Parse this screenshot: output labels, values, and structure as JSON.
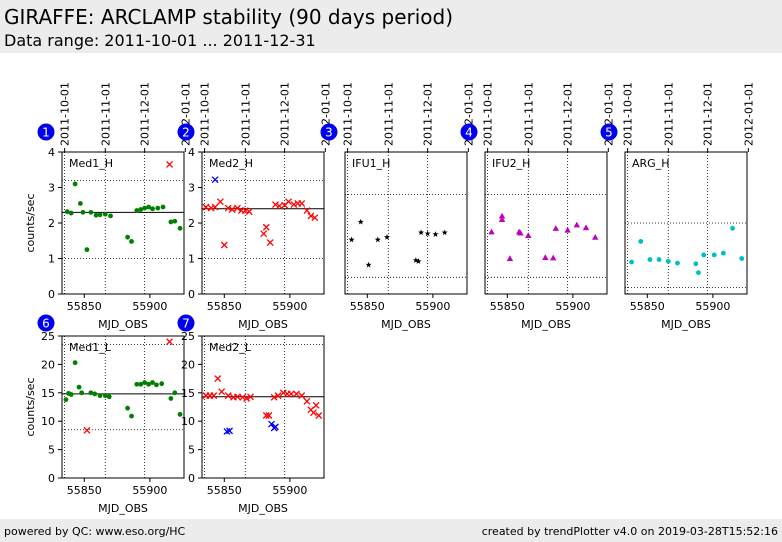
{
  "header": {
    "title": "GIRAFFE: ARCLAMP stability (90 days period)",
    "subtitle": "Data range: 2011-10-01 ... 2011-12-31"
  },
  "footer": {
    "left": "powered by QC: www.eso.org/HC",
    "right": "created by trendPlotter v4.0 on 2019-03-28T15:52:16"
  },
  "colors": {
    "green": "#008000",
    "red": "#ff0000",
    "blue": "#0000ff",
    "black": "#000000",
    "magenta": "#bf00bf",
    "cyan": "#00bfbf",
    "badge": "#0000ee"
  },
  "date_ticks": [
    {
      "label": "2011-10-01",
      "mjd": 55835
    },
    {
      "label": "2011-11-01",
      "mjd": 55866
    },
    {
      "label": "2011-12-01",
      "mjd": 55896
    },
    {
      "label": "2012-01-01",
      "mjd": 55927
    }
  ],
  "chart_data": [
    {
      "panel": 1,
      "type": "scatter",
      "label": "Med1_H",
      "xlabel": "MJD_OBS",
      "ylabel": "counts/sec",
      "xlim": [
        55833,
        55926
      ],
      "ylim": [
        0,
        4
      ],
      "yticks": [
        0,
        1,
        2,
        3,
        4
      ],
      "xticks": [
        55850,
        55900
      ],
      "reference_line": 2.3,
      "upper_dotted": 3.2,
      "lower_dotted": 1.0,
      "series": [
        {
          "color": "green",
          "marker": "dot",
          "points": [
            [
              55837,
              2.32
            ],
            [
              55840,
              2.28
            ],
            [
              55843,
              3.1
            ],
            [
              55847,
              2.55
            ],
            [
              55849,
              2.3
            ],
            [
              55852,
              1.25
            ],
            [
              55855,
              2.3
            ],
            [
              55859,
              2.22
            ],
            [
              55862,
              2.23
            ],
            [
              55866,
              2.25
            ],
            [
              55870,
              2.2
            ],
            [
              55883,
              1.6
            ],
            [
              55886,
              1.48
            ],
            [
              55890,
              2.35
            ],
            [
              55893,
              2.38
            ],
            [
              55896,
              2.42
            ],
            [
              55899,
              2.45
            ],
            [
              55902,
              2.4
            ],
            [
              55906,
              2.42
            ],
            [
              55910,
              2.45
            ],
            [
              55916,
              2.03
            ],
            [
              55919,
              2.05
            ],
            [
              55923,
              1.85
            ]
          ]
        },
        {
          "color": "red",
          "marker": "x",
          "points": [
            [
              55915,
              3.65
            ]
          ]
        },
        {
          "color": "blue",
          "marker": "x",
          "points": []
        }
      ]
    },
    {
      "panel": 2,
      "type": "scatter",
      "label": "Med2_H",
      "xlabel": "MJD_OBS",
      "ylabel": "",
      "xlim": [
        55833,
        55926
      ],
      "ylim": [
        0,
        4
      ],
      "yticks": [
        0,
        1,
        2,
        3,
        4
      ],
      "xticks": [
        55850,
        55900
      ],
      "reference_line": 2.4,
      "upper_dotted": 3.2,
      "lower_dotted": 1.0,
      "series": [
        {
          "color": "red",
          "marker": "x",
          "points": [
            [
              55836,
              2.45
            ],
            [
              55840,
              2.42
            ],
            [
              55843,
              2.45
            ],
            [
              55847,
              2.6
            ],
            [
              55850,
              1.38
            ],
            [
              55853,
              2.42
            ],
            [
              55856,
              2.38
            ],
            [
              55860,
              2.42
            ],
            [
              55863,
              2.35
            ],
            [
              55866,
              2.35
            ],
            [
              55869,
              2.32
            ],
            [
              55880,
              1.7
            ],
            [
              55882,
              1.88
            ],
            [
              55885,
              1.45
            ],
            [
              55889,
              2.52
            ],
            [
              55892,
              2.48
            ],
            [
              55896,
              2.5
            ],
            [
              55899,
              2.6
            ],
            [
              55903,
              2.52
            ],
            [
              55906,
              2.55
            ],
            [
              55909,
              2.55
            ],
            [
              55913,
              2.35
            ],
            [
              55916,
              2.2
            ],
            [
              55919,
              2.15
            ]
          ]
        },
        {
          "color": "blue",
          "marker": "x",
          "points": [
            [
              55843,
              3.22
            ]
          ]
        }
      ]
    },
    {
      "panel": 3,
      "type": "scatter",
      "label": "IFU1_H",
      "xlabel": "MJD_OBS",
      "ylabel": "",
      "xlim": [
        55833,
        55926
      ],
      "ylim": [
        0,
        4
      ],
      "yticks": [],
      "xticks": [
        55850,
        55900
      ],
      "reference_line": null,
      "upper_dotted": 2.8,
      "lower_dotted": 0.47,
      "series": [
        {
          "color": "black",
          "marker": "star",
          "points": [
            [
              55838,
              1.53
            ],
            [
              55845,
              2.03
            ],
            [
              55851,
              0.82
            ],
            [
              55858,
              1.53
            ],
            [
              55865,
              1.6
            ],
            [
              55887,
              0.95
            ],
            [
              55889,
              0.92
            ],
            [
              55891,
              1.73
            ],
            [
              55896,
              1.7
            ],
            [
              55902,
              1.68
            ],
            [
              55909,
              1.73
            ]
          ]
        }
      ]
    },
    {
      "panel": 4,
      "type": "scatter",
      "label": "IFU2_H",
      "xlabel": "MJD_OBS",
      "ylabel": "",
      "xlim": [
        55833,
        55926
      ],
      "ylim": [
        0,
        4
      ],
      "yticks": [],
      "xticks": [
        55850,
        55900
      ],
      "reference_line": null,
      "upper_dotted": 2.8,
      "lower_dotted": 0.47,
      "series": [
        {
          "color": "magenta",
          "marker": "triangle",
          "points": [
            [
              55838,
              1.75
            ],
            [
              55846,
              2.2
            ],
            [
              55846,
              2.1
            ],
            [
              55852,
              1.0
            ],
            [
              55859,
              1.75
            ],
            [
              55860,
              1.72
            ],
            [
              55866,
              1.65
            ],
            [
              55879,
              1.03
            ],
            [
              55885,
              1.02
            ],
            [
              55887,
              1.85
            ],
            [
              55896,
              1.8
            ],
            [
              55903,
              1.95
            ],
            [
              55910,
              1.87
            ],
            [
              55917,
              1.6
            ]
          ]
        }
      ]
    },
    {
      "panel": 5,
      "type": "scatter",
      "label": "ARG_H",
      "xlabel": "MJD_OBS",
      "ylabel": "",
      "xlim": [
        55833,
        55926
      ],
      "ylim": [
        0,
        4
      ],
      "yticks": [],
      "xticks": [
        55850,
        55900
      ],
      "reference_line": null,
      "upper_dotted": 2.0,
      "lower_dotted": 0.18,
      "series": [
        {
          "color": "cyan",
          "marker": "dot",
          "points": [
            [
              55838,
              0.9
            ],
            [
              55845,
              1.48
            ],
            [
              55852,
              0.97
            ],
            [
              55859,
              0.97
            ],
            [
              55866,
              0.92
            ],
            [
              55873,
              0.87
            ],
            [
              55887,
              0.85
            ],
            [
              55889,
              0.6
            ],
            [
              55893,
              1.1
            ],
            [
              55901,
              1.1
            ],
            [
              55908,
              1.15
            ],
            [
              55915,
              1.85
            ],
            [
              55922,
              1.0
            ]
          ]
        }
      ]
    },
    {
      "panel": 6,
      "type": "scatter",
      "label": "Med1_L",
      "xlabel": "MJD_OBS",
      "ylabel": "counts/sec",
      "xlim": [
        55833,
        55926
      ],
      "ylim": [
        0,
        25
      ],
      "yticks": [
        0,
        5,
        10,
        15,
        20,
        25
      ],
      "xticks": [
        55850,
        55900
      ],
      "reference_line": 14.8,
      "upper_dotted": 23.5,
      "lower_dotted": 8.5,
      "series": [
        {
          "color": "green",
          "marker": "dot",
          "points": [
            [
              55836,
              13.8
            ],
            [
              55838,
              14.9
            ],
            [
              55840,
              14.7
            ],
            [
              55843,
              20.3
            ],
            [
              55846,
              16.0
            ],
            [
              55848,
              15.0
            ],
            [
              55855,
              15.0
            ],
            [
              55858,
              14.8
            ],
            [
              55862,
              14.5
            ],
            [
              55866,
              14.5
            ],
            [
              55869,
              14.3
            ],
            [
              55883,
              12.3
            ],
            [
              55886,
              10.9
            ],
            [
              55890,
              16.5
            ],
            [
              55893,
              16.5
            ],
            [
              55896,
              16.8
            ],
            [
              55899,
              16.5
            ],
            [
              55902,
              16.8
            ],
            [
              55905,
              16.4
            ],
            [
              55909,
              16.6
            ],
            [
              55916,
              14.0
            ],
            [
              55919,
              15.0
            ],
            [
              55923,
              11.2
            ]
          ]
        },
        {
          "color": "red",
          "marker": "x",
          "points": [
            [
              55852,
              8.4
            ],
            [
              55915,
              24.0
            ]
          ]
        }
      ]
    },
    {
      "panel": 7,
      "type": "scatter",
      "label": "Med2_L",
      "xlabel": "MJD_OBS",
      "ylabel": "",
      "xlim": [
        55833,
        55926
      ],
      "ylim": [
        0,
        25
      ],
      "yticks": [
        0,
        5,
        10,
        15,
        20,
        25
      ],
      "xticks": [
        55850,
        55900
      ],
      "reference_line": 14.3,
      "upper_dotted": 23.5,
      "lower_dotted": null,
      "series": [
        {
          "color": "red",
          "marker": "x",
          "points": [
            [
              55836,
              14.5
            ],
            [
              55839,
              14.5
            ],
            [
              55842,
              14.5
            ],
            [
              55845,
              17.5
            ],
            [
              55848,
              15.2
            ],
            [
              55853,
              14.5
            ],
            [
              55857,
              14.2
            ],
            [
              55860,
              14.3
            ],
            [
              55864,
              14.2
            ],
            [
              55867,
              14.0
            ],
            [
              55870,
              14.3
            ],
            [
              55882,
              11.0
            ],
            [
              55884,
              11.0
            ],
            [
              55888,
              14.2
            ],
            [
              55891,
              14.5
            ],
            [
              55895,
              15.0
            ],
            [
              55898,
              14.8
            ],
            [
              55901,
              14.8
            ],
            [
              55905,
              14.8
            ],
            [
              55909,
              14.5
            ],
            [
              55913,
              13.5
            ],
            [
              55916,
              12.0
            ],
            [
              55918,
              11.5
            ],
            [
              55920,
              12.8
            ],
            [
              55922,
              11.0
            ]
          ]
        },
        {
          "color": "blue",
          "marker": "x",
          "points": [
            [
              55852,
              8.2
            ],
            [
              55854,
              8.3
            ],
            [
              55886,
              9.5
            ],
            [
              55888,
              8.8
            ],
            [
              55889,
              9.0
            ]
          ]
        }
      ]
    }
  ]
}
